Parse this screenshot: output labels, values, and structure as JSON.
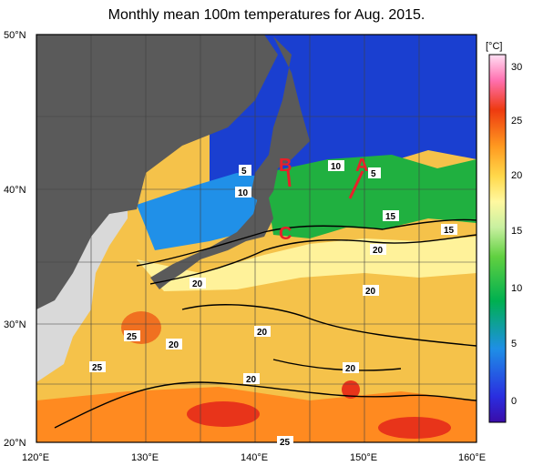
{
  "title": "Monthly mean 100m temperatures for Aug. 2015.",
  "lat_labels": [
    "50°N",
    "40°N",
    "30°N",
    "20°N"
  ],
  "lon_labels": [
    "120°E",
    "130°E",
    "140°E",
    "150°E",
    "160°E"
  ],
  "colorbar": {
    "unit": "[°C]",
    "ticks": [
      "30",
      "25",
      "20",
      "15",
      "10",
      "5",
      "0"
    ]
  },
  "contour_labels": [
    "5",
    "10",
    "5",
    "10",
    "15",
    "15",
    "20",
    "20",
    "20",
    "25",
    "20",
    "25",
    "20",
    "20",
    "20",
    "25"
  ],
  "markers": [
    "A",
    "B",
    "C"
  ],
  "colors": {
    "land": "#5a5a5a",
    "no_data": "#d9d9d9",
    "marker": "#e8202a"
  }
}
